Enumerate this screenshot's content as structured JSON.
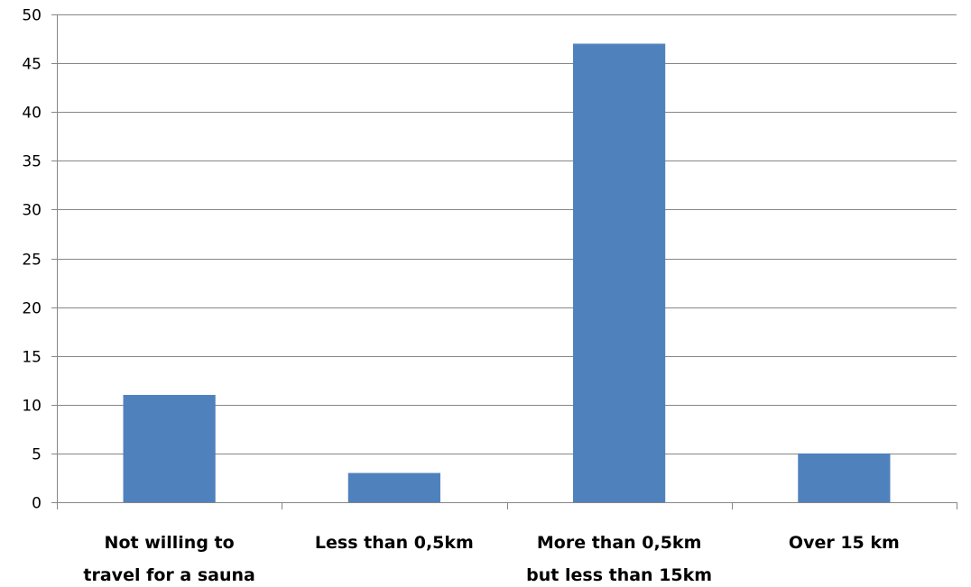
{
  "chart_data": {
    "type": "bar",
    "title": "",
    "xlabel": "",
    "ylabel": "",
    "categories": [
      [
        "Not willing to",
        "travel for a sauna"
      ],
      [
        "Less than 0,5km"
      ],
      [
        "More than 0,5km",
        "but less than 15km"
      ],
      [
        "Over 15 km"
      ]
    ],
    "values": [
      11,
      3,
      47,
      5
    ],
    "ylim": [
      0,
      50
    ],
    "yticks": [
      0,
      5,
      10,
      15,
      20,
      25,
      30,
      35,
      40,
      45,
      50
    ],
    "grid": true,
    "legend": "none",
    "bar_color": "#4F81BD"
  }
}
